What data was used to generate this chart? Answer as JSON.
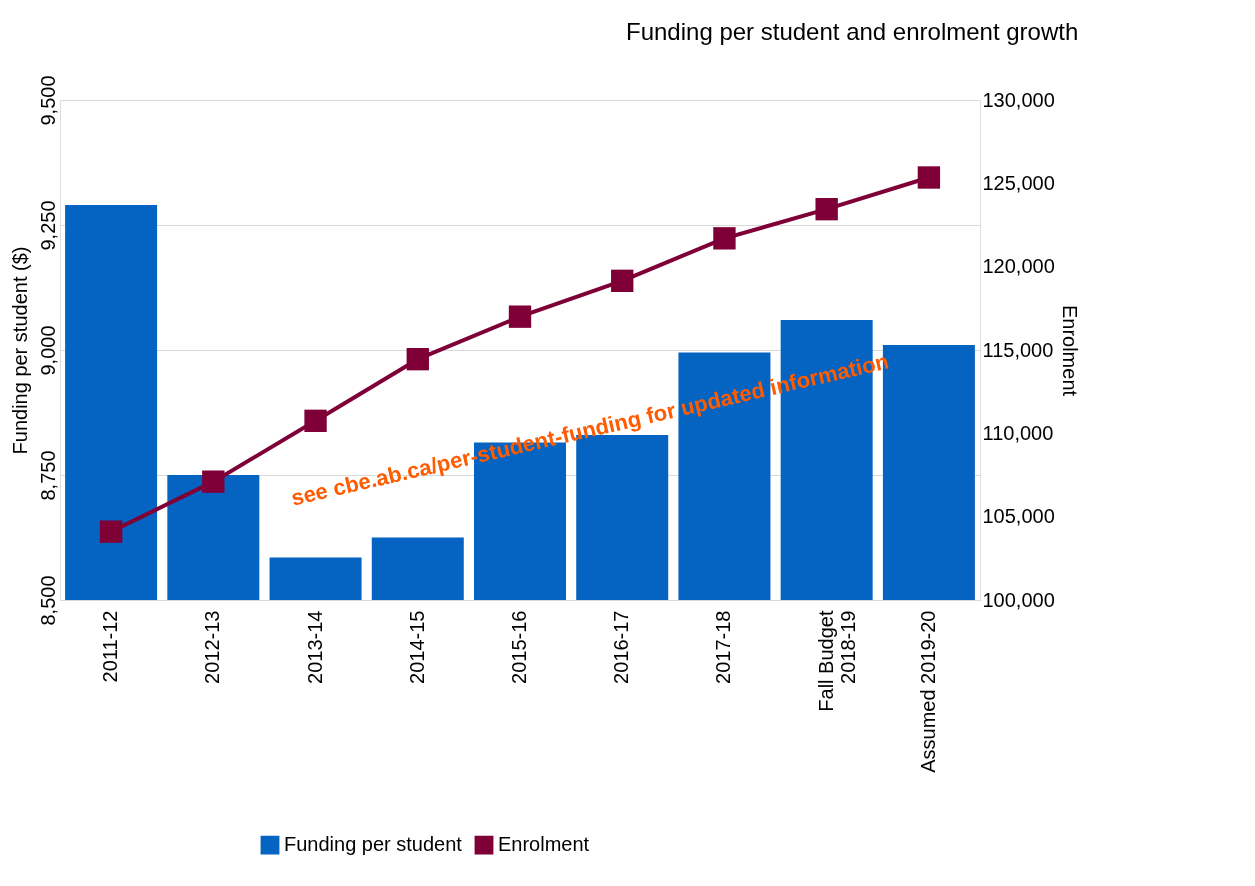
{
  "chart_data": {
    "type": "bar",
    "title": "Funding per student and enrolment growth",
    "ylabel": "Funding per student ($)",
    "y2label": "Enrolment",
    "categories": [
      "2011-12",
      "2012-13",
      "2013-14",
      "2014-15",
      "2015-16",
      "2016-17",
      "2017-18",
      "Fall Budget\n2018-19",
      "Assumed 2019-20"
    ],
    "series": [
      {
        "name": "Funding per student",
        "color": "#0563c1",
        "values": [
          9290,
          8750,
          8585,
          8625,
          8815,
          8830,
          8995,
          9060,
          9010
        ]
      },
      {
        "name": "Enrolment",
        "type": "line",
        "axis": "y2",
        "color": "#7f0037",
        "marker": "square",
        "values": [
          104100,
          107100,
          110750,
          114450,
          117000,
          119150,
          121700,
          123450,
          125350
        ]
      }
    ],
    "ylim": [
      8500,
      9500
    ],
    "yticks": [
      {
        "value": 8500,
        "label": "8,500"
      },
      {
        "value": 8750,
        "label": "8,750"
      },
      {
        "value": 9000,
        "label": "9,000"
      },
      {
        "value": 9250,
        "label": "9,250"
      },
      {
        "value": 9500,
        "label": "9,500"
      }
    ],
    "y2lim": [
      100000,
      130000
    ],
    "y2ticks": [
      {
        "value": 100000,
        "label": "100,000"
      },
      {
        "value": 105000,
        "label": "105,000"
      },
      {
        "value": 110000,
        "label": "110,000"
      },
      {
        "value": 115000,
        "label": "115,000"
      },
      {
        "value": 120000,
        "label": "120,000"
      },
      {
        "value": 125000,
        "label": "125,000"
      },
      {
        "value": 130000,
        "label": "130,000"
      }
    ],
    "grid": "y",
    "legend": "bottom",
    "annotations": [
      "see cbe.ab.ca/per-student-funding for updated information"
    ]
  }
}
